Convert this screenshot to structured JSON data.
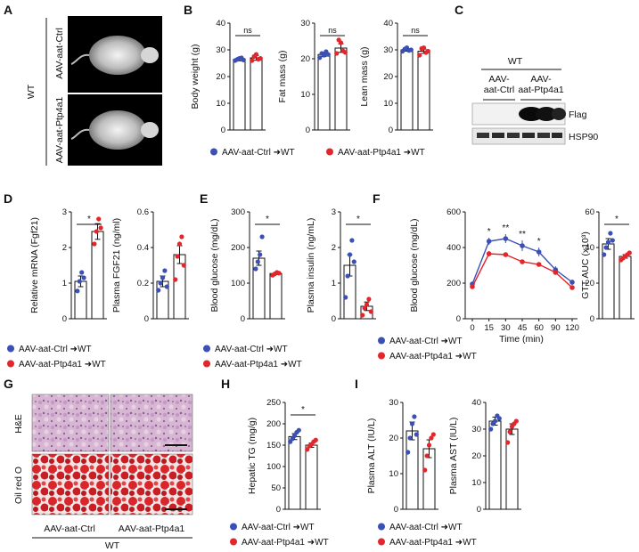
{
  "colors": {
    "ctrl": "#3b50b4",
    "ptp": "#e3262b",
    "axis": "#111111"
  },
  "legend": {
    "ctrl": "AAV-aat-Ctrl",
    "ptp": "AAV-aat-Ptp4a1",
    "arrow_target": "WT"
  },
  "panels": {
    "A": {
      "letter": "A",
      "group": "WT",
      "rows": [
        "AAV-aat-Ctrl",
        "AAV-aat-Ptp4a1"
      ]
    },
    "B": {
      "letter": "B"
    },
    "C": {
      "letter": "C",
      "group": "WT",
      "cols": [
        "AAV-\naat-Ctrl",
        "AAV-\naat-Ptp4a1"
      ],
      "bands": [
        "Flag",
        "HSP90"
      ]
    },
    "D": {
      "letter": "D"
    },
    "E": {
      "letter": "E"
    },
    "F": {
      "letter": "F"
    },
    "G": {
      "letter": "G",
      "rows": [
        "H&E",
        "Oil red O"
      ],
      "cols": [
        "AAV-aat-Ctrl",
        "AAV-aat-Ptp4a1"
      ],
      "group": "WT"
    },
    "H": {
      "letter": "H"
    },
    "I": {
      "letter": "I"
    }
  },
  "chart_data": [
    {
      "id": "B1",
      "type": "bar",
      "ylabel": "Body weight (g)",
      "ylim": [
        0,
        40
      ],
      "ticks": [
        0,
        10,
        20,
        30,
        40
      ],
      "categories": [
        "AAV-aat-Ctrl→WT",
        "AAV-aat-Ptp4a1→WT"
      ],
      "values": [
        26.5,
        27.0
      ],
      "errors": [
        0.6,
        0.9
      ],
      "sig": "ns",
      "points": [
        [
          26.0,
          26.4,
          26.8,
          27.0,
          26.2
        ],
        [
          26.0,
          27.5,
          28.3,
          26.5,
          26.8
        ]
      ]
    },
    {
      "id": "B2",
      "type": "bar",
      "ylabel": "Fat mass (g)",
      "ylim": [
        0,
        30
      ],
      "ticks": [
        0,
        10,
        20,
        30
      ],
      "categories": [
        "AAV-aat-Ctrl→WT",
        "AAV-aat-Ptp4a1→WT"
      ],
      "values": [
        21.2,
        23.0
      ],
      "errors": [
        0.6,
        1.2
      ],
      "sig": "ns",
      "points": [
        [
          20.3,
          21.5,
          21.0,
          22.0,
          21.2
        ],
        [
          21.5,
          25.3,
          24.5,
          22.2,
          21.8
        ]
      ]
    },
    {
      "id": "B3",
      "type": "bar",
      "ylabel": "Lean mass (g)",
      "ylim": [
        0,
        40
      ],
      "ticks": [
        0,
        10,
        20,
        30,
        40
      ],
      "categories": [
        "AAV-aat-Ctrl→WT",
        "AAV-aat-Ptp4a1→WT"
      ],
      "values": [
        30.0,
        29.5
      ],
      "errors": [
        0.5,
        0.8
      ],
      "sig": "ns",
      "points": [
        [
          29.5,
          30.3,
          30.8,
          29.8,
          30.0
        ],
        [
          28.0,
          30.5,
          30.8,
          29.0,
          29.5
        ]
      ]
    },
    {
      "id": "D1",
      "type": "bar",
      "ylabel": "Relative mRNA (Fgf21)",
      "ylim": [
        0,
        3
      ],
      "ticks": [
        0,
        1,
        2,
        3
      ],
      "categories": [
        "AAV-aat-Ctrl→WT",
        "AAV-aat-Ptp4a1→WT"
      ],
      "values": [
        1.05,
        2.45
      ],
      "errors": [
        0.15,
        0.22
      ],
      "sig": "*",
      "points": [
        [
          0.78,
          1.05,
          1.3,
          1.15
        ],
        [
          2.1,
          2.45,
          2.8,
          2.55
        ]
      ]
    },
    {
      "id": "D2",
      "type": "bar",
      "ylabel": "Plasma FGF21 (ng/ml)",
      "ylim": [
        0,
        0.6
      ],
      "ticks": [
        0,
        0.2,
        0.4,
        0.6
      ],
      "categories": [
        "AAV-aat-Ctrl→WT",
        "AAV-aat-Ptp4a1→WT"
      ],
      "values": [
        0.21,
        0.36
      ],
      "errors": [
        0.03,
        0.05
      ],
      "sig": "",
      "points": [
        [
          0.16,
          0.2,
          0.23,
          0.27,
          0.18
        ],
        [
          0.22,
          0.35,
          0.42,
          0.46,
          0.3
        ]
      ]
    },
    {
      "id": "E1",
      "type": "bar",
      "ylabel": "Blood glucose (mg/dL)",
      "ylim": [
        0,
        300
      ],
      "ticks": [
        0,
        100,
        200,
        300
      ],
      "categories": [
        "AAV-aat-Ctrl→WT",
        "AAV-aat-Ptp4a1→WT"
      ],
      "values": [
        170,
        127
      ],
      "errors": [
        20,
        3
      ],
      "sig": "*",
      "points": [
        [
          140,
          160,
          180,
          230
        ],
        [
          122,
          126,
          130,
          128
        ]
      ]
    },
    {
      "id": "E2",
      "type": "bar",
      "ylabel": "Plasma insulin (ng/mL)",
      "ylim": [
        0,
        3
      ],
      "ticks": [
        0,
        1,
        2,
        3
      ],
      "categories": [
        "AAV-aat-Ctrl→WT",
        "AAV-aat-Ptp4a1→WT"
      ],
      "values": [
        1.5,
        0.35
      ],
      "errors": [
        0.3,
        0.12
      ],
      "sig": "*",
      "points": [
        [
          0.6,
          1.2,
          1.8,
          2.2,
          1.6
        ],
        [
          0.1,
          0.3,
          0.4,
          0.55,
          0.2
        ]
      ]
    },
    {
      "id": "F1",
      "type": "line",
      "ylabel": "Blood glucose (mg/dL)",
      "xlabel": "Time (min)",
      "ylim": [
        0,
        600
      ],
      "ticks": [
        0,
        200,
        400,
        600
      ],
      "x": [
        0,
        15,
        30,
        45,
        60,
        90,
        120
      ],
      "series": [
        {
          "name": "AAV-aat-Ctrl→WT",
          "values": [
            195,
            435,
            450,
            410,
            375,
            275,
            205
          ],
          "errors": [
            12,
            20,
            25,
            30,
            25,
            20,
            15
          ]
        },
        {
          "name": "AAV-aat-Ptp4a1→WT",
          "values": [
            180,
            365,
            360,
            320,
            305,
            260,
            175
          ],
          "errors": [
            10,
            15,
            12,
            10,
            12,
            10,
            10
          ]
        }
      ],
      "sig": [
        "",
        "*",
        "**",
        "**",
        "*",
        "",
        ""
      ]
    },
    {
      "id": "F2",
      "type": "bar",
      "ylabel": "GTT AUC (x10³)",
      "ylim": [
        0,
        60
      ],
      "ticks": [
        0,
        20,
        40,
        60
      ],
      "categories": [
        "AAV-aat-Ctrl→WT",
        "AAV-aat-Ptp4a1→WT"
      ],
      "values": [
        42,
        35
      ],
      "errors": [
        3,
        1
      ],
      "sig": "*",
      "points": [
        [
          36,
          40,
          43,
          48,
          44
        ],
        [
          33,
          34,
          35,
          36,
          37
        ]
      ]
    },
    {
      "id": "H1",
      "type": "bar",
      "ylabel": "Hepatic TG (mg/g)",
      "ylim": [
        0,
        250
      ],
      "ticks": [
        0,
        50,
        100,
        150,
        200,
        250
      ],
      "categories": [
        "AAV-aat-Ctrl→WT",
        "AAV-aat-Ptp4a1→WT"
      ],
      "values": [
        170,
        150
      ],
      "errors": [
        7,
        5
      ],
      "sig": "*",
      "points": [
        [
          158,
          165,
          172,
          180,
          185
        ],
        [
          140,
          148,
          152,
          158,
          162
        ]
      ]
    },
    {
      "id": "I1",
      "type": "bar",
      "ylabel": "Plasma ALT (IU/L)",
      "ylim": [
        0,
        30
      ],
      "ticks": [
        0,
        10,
        20,
        30
      ],
      "categories": [
        "AAV-aat-Ctrl→WT",
        "AAV-aat-Ptp4a1→WT"
      ],
      "values": [
        22,
        17
      ],
      "errors": [
        2.5,
        2.5
      ],
      "sig": "",
      "points": [
        [
          16,
          20,
          24,
          26,
          21
        ],
        [
          11,
          15,
          18,
          20,
          21
        ]
      ]
    },
    {
      "id": "I2",
      "type": "bar",
      "ylabel": "Plasma AST (IU/L)",
      "ylim": [
        0,
        40
      ],
      "ticks": [
        0,
        10,
        20,
        30,
        40
      ],
      "categories": [
        "AAV-aat-Ctrl→WT",
        "AAV-aat-Ptp4a1→WT"
      ],
      "values": [
        33,
        30
      ],
      "errors": [
        1.5,
        2
      ],
      "sig": "",
      "points": [
        [
          30,
          32,
          33,
          35,
          34
        ],
        [
          25,
          29,
          31,
          32,
          33
        ]
      ]
    }
  ]
}
